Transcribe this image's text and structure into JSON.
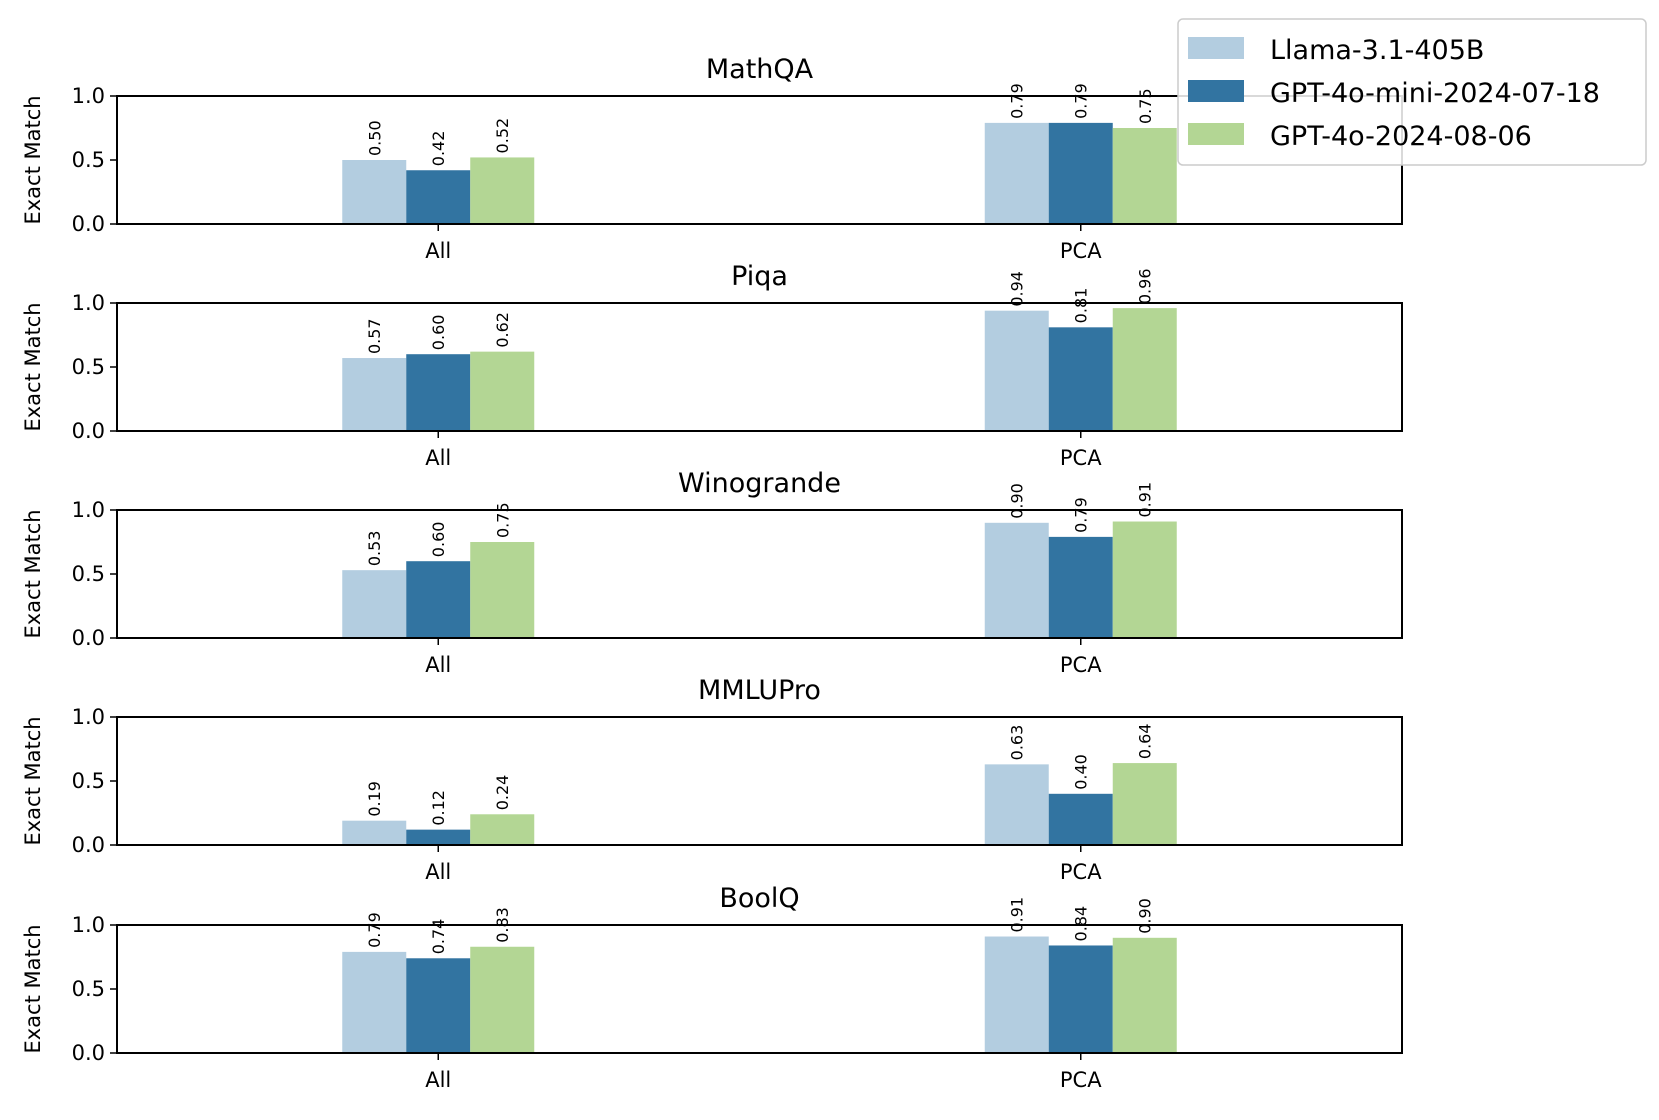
{
  "chart_data": {
    "type": "bar",
    "ylabel": "Exact Match",
    "ylim": [
      0,
      1.0
    ],
    "yticks": [
      "0.0",
      "0.5",
      "1.0"
    ],
    "categories": [
      "All",
      "PCA"
    ],
    "legend": {
      "placement": "top-right",
      "entries": [
        {
          "name": "Llama-3.1-405B",
          "color": "#b3cde0"
        },
        {
          "name": "GPT-4o-mini-2024-07-18",
          "color": "#3274a1"
        },
        {
          "name": "GPT-4o-2024-08-06",
          "color": "#b3d694"
        }
      ]
    },
    "panels": [
      {
        "title": "MathQA",
        "series": [
          {
            "name": "Llama-3.1-405B",
            "values": [
              0.5,
              0.79
            ],
            "labels": [
              "0.50",
              "0.79"
            ]
          },
          {
            "name": "GPT-4o-mini-2024-07-18",
            "values": [
              0.42,
              0.79
            ],
            "labels": [
              "0.42",
              "0.79"
            ]
          },
          {
            "name": "GPT-4o-2024-08-06",
            "values": [
              0.52,
              0.75
            ],
            "labels": [
              "0.52",
              "0.75"
            ]
          }
        ]
      },
      {
        "title": "Piqa",
        "series": [
          {
            "name": "Llama-3.1-405B",
            "values": [
              0.57,
              0.94
            ],
            "labels": [
              "0.57",
              "0.94"
            ]
          },
          {
            "name": "GPT-4o-mini-2024-07-18",
            "values": [
              0.6,
              0.81
            ],
            "labels": [
              "0.60",
              "0.81"
            ]
          },
          {
            "name": "GPT-4o-2024-08-06",
            "values": [
              0.62,
              0.96
            ],
            "labels": [
              "0.62",
              "0.96"
            ]
          }
        ]
      },
      {
        "title": "Winogrande",
        "series": [
          {
            "name": "Llama-3.1-405B",
            "values": [
              0.53,
              0.9
            ],
            "labels": [
              "0.53",
              "0.90"
            ]
          },
          {
            "name": "GPT-4o-mini-2024-07-18",
            "values": [
              0.6,
              0.79
            ],
            "labels": [
              "0.60",
              "0.79"
            ]
          },
          {
            "name": "GPT-4o-2024-08-06",
            "values": [
              0.75,
              0.91
            ],
            "labels": [
              "0.75",
              "0.91"
            ]
          }
        ]
      },
      {
        "title": "MMLUPro",
        "series": [
          {
            "name": "Llama-3.1-405B",
            "values": [
              0.19,
              0.63
            ],
            "labels": [
              "0.19",
              "0.63"
            ]
          },
          {
            "name": "GPT-4o-mini-2024-07-18",
            "values": [
              0.12,
              0.4
            ],
            "labels": [
              "0.12",
              "0.40"
            ]
          },
          {
            "name": "GPT-4o-2024-08-06",
            "values": [
              0.24,
              0.64
            ],
            "labels": [
              "0.24",
              "0.64"
            ]
          }
        ]
      },
      {
        "title": "BoolQ",
        "series": [
          {
            "name": "Llama-3.1-405B",
            "values": [
              0.79,
              0.91
            ],
            "labels": [
              "0.79",
              "0.91"
            ]
          },
          {
            "name": "GPT-4o-mini-2024-07-18",
            "values": [
              0.74,
              0.84
            ],
            "labels": [
              "0.74",
              "0.84"
            ]
          },
          {
            "name": "GPT-4o-2024-08-06",
            "values": [
              0.83,
              0.9
            ],
            "labels": [
              "0.83",
              "0.90"
            ]
          }
        ]
      }
    ]
  }
}
